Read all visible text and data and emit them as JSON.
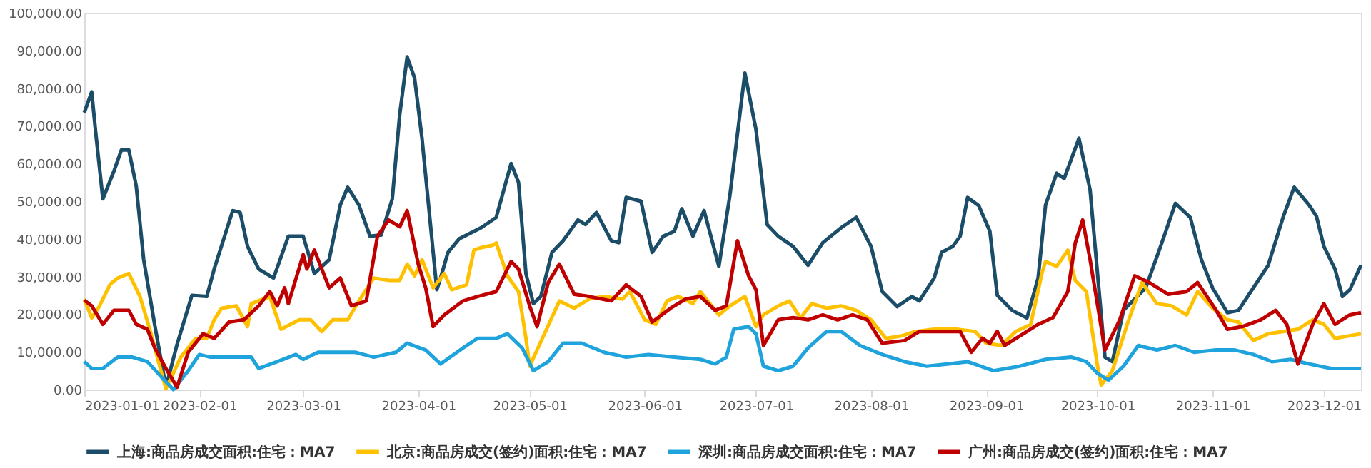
{
  "chart_data": {
    "type": "line",
    "xlim": [
      "2023-01-01",
      "2023-12-11"
    ],
    "xticks": [
      "2023-01-01",
      "2023-02-01",
      "2023-03-01",
      "2023-04-01",
      "2023-05-01",
      "2023-06-01",
      "2023-07-01",
      "2023-08-01",
      "2023-09-01",
      "2023-10-01",
      "2023-11-01",
      "2023-12-01"
    ],
    "ylim": [
      0,
      100000
    ],
    "yticks": [
      {
        "value": 0,
        "label": "0.00"
      },
      {
        "value": 10000,
        "label": "10,000.00"
      },
      {
        "value": 20000,
        "label": "20,000.00"
      },
      {
        "value": 30000,
        "label": "30,000.00"
      },
      {
        "value": 40000,
        "label": "40,000.00"
      },
      {
        "value": 50000,
        "label": "50,000.00"
      },
      {
        "value": 60000,
        "label": "60,000.00"
      },
      {
        "value": 70000,
        "label": "70,000.00"
      },
      {
        "value": 80000,
        "label": "80,000.00"
      },
      {
        "value": 90000,
        "label": "90,000.00"
      },
      {
        "value": 100000,
        "label": "100,000.00"
      }
    ],
    "grid": false,
    "legend": "bottom",
    "marker": "none",
    "line_style": "solid",
    "series": [
      {
        "name": "上海:商品房成交面积:住宅：MA7",
        "color": "#1b4d68",
        "x": [
          "2023-01-01",
          "2023-01-03",
          "2023-01-04",
          "2023-01-06",
          "2023-01-09",
          "2023-01-11",
          "2023-01-13",
          "2023-01-15",
          "2023-01-17",
          "2023-01-20",
          "2023-01-23",
          "2023-01-26",
          "2023-01-30",
          "2023-02-03",
          "2023-02-05",
          "2023-02-10",
          "2023-02-12",
          "2023-02-14",
          "2023-02-17",
          "2023-02-21",
          "2023-02-25",
          "2023-03-01",
          "2023-03-04",
          "2023-03-08",
          "2023-03-11",
          "2023-03-13",
          "2023-03-16",
          "2023-03-19",
          "2023-03-22",
          "2023-03-25",
          "2023-03-27",
          "2023-03-29",
          "2023-03-31",
          "2023-04-02",
          "2023-04-06",
          "2023-04-07",
          "2023-04-09",
          "2023-04-12",
          "2023-04-18",
          "2023-04-22",
          "2023-04-26",
          "2023-04-28",
          "2023-04-30",
          "2023-05-02",
          "2023-05-04",
          "2023-05-07",
          "2023-05-10",
          "2023-05-14",
          "2023-05-16",
          "2023-05-19",
          "2023-05-23",
          "2023-05-25",
          "2023-05-27",
          "2023-05-31",
          "2023-06-03",
          "2023-06-06",
          "2023-06-09",
          "2023-06-11",
          "2023-06-14",
          "2023-06-17",
          "2023-06-21",
          "2023-06-24",
          "2023-06-28",
          "2023-07-01",
          "2023-07-04",
          "2023-07-07",
          "2023-07-11",
          "2023-07-15",
          "2023-07-19",
          "2023-07-24",
          "2023-07-28",
          "2023-08-01",
          "2023-08-04",
          "2023-08-08",
          "2023-08-12",
          "2023-08-14",
          "2023-08-18",
          "2023-08-20",
          "2023-08-23",
          "2023-08-25",
          "2023-08-27",
          "2023-08-30",
          "2023-09-02",
          "2023-09-04",
          "2023-09-08",
          "2023-09-12",
          "2023-09-15",
          "2023-09-17",
          "2023-09-20",
          "2023-09-22",
          "2023-09-26",
          "2023-09-29",
          "2023-10-03",
          "2023-10-05",
          "2023-10-08",
          "2023-10-14",
          "2023-10-18",
          "2023-10-22",
          "2023-10-26",
          "2023-10-29",
          "2023-11-01",
          "2023-11-05",
          "2023-11-08",
          "2023-11-12",
          "2023-11-16",
          "2023-11-20",
          "2023-11-23",
          "2023-11-27",
          "2023-11-29",
          "2023-12-01",
          "2023-12-04",
          "2023-12-06",
          "2023-12-08",
          "2023-12-11"
        ],
        "values": [
          73500,
          79000,
          69000,
          50600,
          58000,
          63600,
          63600,
          54000,
          34500,
          17000,
          600,
          12000,
          25000,
          24700,
          32000,
          47500,
          47000,
          38000,
          32000,
          29600,
          40700,
          40700,
          30800,
          34500,
          49000,
          53700,
          49000,
          40700,
          41000,
          50600,
          73000,
          88300,
          82700,
          66700,
          26500,
          29600,
          36400,
          40000,
          43000,
          45700,
          60000,
          55000,
          30800,
          22800,
          24700,
          36400,
          39500,
          45000,
          43800,
          47000,
          39500,
          39000,
          51000,
          50000,
          36400,
          40700,
          42000,
          48000,
          40700,
          47500,
          32700,
          51800,
          84000,
          69000,
          43800,
          40700,
          38000,
          33000,
          39000,
          43000,
          45700,
          38000,
          26000,
          22000,
          24700,
          23500,
          29600,
          36400,
          38000,
          40700,
          51000,
          48800,
          42000,
          25000,
          21000,
          19000,
          29600,
          49000,
          57400,
          56000,
          66700,
          53000,
          8600,
          7400,
          21000,
          27000,
          38000,
          49400,
          45700,
          34500,
          27000,
          20400,
          21000,
          27000,
          33000,
          45700,
          53700,
          49000,
          46000,
          38000,
          32000,
          24700,
          26500,
          33000
        ]
      },
      {
        "name": "北京:商品房成交(签约)面积:住宅：MA7",
        "color": "#ffc000",
        "x": [
          "2023-01-01",
          "2023-01-03",
          "2023-01-05",
          "2023-01-08",
          "2023-01-10",
          "2023-01-13",
          "2023-01-16",
          "2023-01-19",
          "2023-01-22",
          "2023-01-23",
          "2023-01-27",
          "2023-01-31",
          "2023-02-03",
          "2023-02-05",
          "2023-02-07",
          "2023-02-11",
          "2023-02-14",
          "2023-02-15",
          "2023-02-20",
          "2023-02-23",
          "2023-02-28",
          "2023-03-03",
          "2023-03-06",
          "2023-03-09",
          "2023-03-13",
          "2023-03-16",
          "2023-03-20",
          "2023-03-24",
          "2023-03-27",
          "2023-03-29",
          "2023-03-31",
          "2023-04-02",
          "2023-04-05",
          "2023-04-08",
          "2023-04-10",
          "2023-04-14",
          "2023-04-16",
          "2023-04-18",
          "2023-04-21",
          "2023-04-22",
          "2023-04-25",
          "2023-04-28",
          "2023-04-30",
          "2023-05-01",
          "2023-05-05",
          "2023-05-09",
          "2023-05-13",
          "2023-05-17",
          "2023-05-21",
          "2023-05-26",
          "2023-05-28",
          "2023-06-01",
          "2023-06-04",
          "2023-06-07",
          "2023-06-10",
          "2023-06-14",
          "2023-06-16",
          "2023-06-21",
          "2023-06-24",
          "2023-06-28",
          "2023-07-01",
          "2023-07-03",
          "2023-07-07",
          "2023-07-10",
          "2023-07-13",
          "2023-07-16",
          "2023-07-20",
          "2023-07-24",
          "2023-07-28",
          "2023-08-01",
          "2023-08-05",
          "2023-08-09",
          "2023-08-13",
          "2023-08-18",
          "2023-08-24",
          "2023-08-29",
          "2023-09-01",
          "2023-09-05",
          "2023-09-09",
          "2023-09-13",
          "2023-09-16",
          "2023-09-17",
          "2023-09-20",
          "2023-09-23",
          "2023-09-25",
          "2023-09-28",
          "2023-10-01",
          "2023-10-02",
          "2023-10-05",
          "2023-10-09",
          "2023-10-13",
          "2023-10-17",
          "2023-10-21",
          "2023-10-25",
          "2023-10-28",
          "2023-11-01",
          "2023-11-05",
          "2023-11-08",
          "2023-11-12",
          "2023-11-16",
          "2023-11-20",
          "2023-11-24",
          "2023-11-28",
          "2023-12-01",
          "2023-12-04",
          "2023-12-11"
        ],
        "values": [
          24000,
          19000,
          22000,
          28000,
          29600,
          30800,
          24700,
          14800,
          3700,
          200,
          8600,
          13600,
          13600,
          18500,
          21600,
          22200,
          16700,
          22800,
          24700,
          16000,
          18500,
          18500,
          15400,
          18500,
          18500,
          23500,
          29600,
          29000,
          29000,
          33300,
          30200,
          34500,
          27000,
          30800,
          26500,
          27800,
          37000,
          37700,
          38300,
          38900,
          30200,
          26000,
          13600,
          6200,
          14800,
          23500,
          21600,
          24000,
          24700,
          24000,
          26000,
          18500,
          17300,
          23500,
          24700,
          22800,
          26000,
          19800,
          22200,
          24700,
          16700,
          19800,
          22200,
          23500,
          19000,
          22800,
          21600,
          22200,
          21000,
          18500,
          13600,
          14200,
          15400,
          16000,
          16000,
          15400,
          12300,
          11700,
          15400,
          17300,
          30800,
          34000,
          32700,
          37000,
          29000,
          26000,
          6200,
          1200,
          5000,
          17300,
          28400,
          22800,
          22200,
          19800,
          26000,
          21600,
          18500,
          17900,
          13000,
          14800,
          15400,
          16000,
          18500,
          17300,
          13600,
          14800
        ]
      },
      {
        "name": "深圳:商品房成交面积:住宅：MA7",
        "color": "#1fa3dc",
        "x": [
          "2023-01-01",
          "2023-01-03",
          "2023-01-06",
          "2023-01-10",
          "2023-01-14",
          "2023-01-18",
          "2023-01-22",
          "2023-01-25",
          "2023-01-29",
          "2023-02-01",
          "2023-02-04",
          "2023-02-06",
          "2023-02-15",
          "2023-02-17",
          "2023-02-22",
          "2023-02-27",
          "2023-03-01",
          "2023-03-05",
          "2023-03-15",
          "2023-03-20",
          "2023-03-26",
          "2023-03-29",
          "2023-04-03",
          "2023-04-07",
          "2023-04-13",
          "2023-04-17",
          "2023-04-22",
          "2023-04-25",
          "2023-04-29",
          "2023-05-02",
          "2023-05-06",
          "2023-05-10",
          "2023-05-15",
          "2023-05-21",
          "2023-05-27",
          "2023-06-02",
          "2023-06-09",
          "2023-06-16",
          "2023-06-20",
          "2023-06-23",
          "2023-06-25",
          "2023-06-29",
          "2023-07-01",
          "2023-07-03",
          "2023-07-07",
          "2023-07-11",
          "2023-07-15",
          "2023-07-20",
          "2023-07-24",
          "2023-07-29",
          "2023-08-04",
          "2023-08-10",
          "2023-08-16",
          "2023-08-22",
          "2023-08-27",
          "2023-09-03",
          "2023-09-10",
          "2023-09-17",
          "2023-09-24",
          "2023-09-28",
          "2023-10-01",
          "2023-10-04",
          "2023-10-08",
          "2023-10-12",
          "2023-10-17",
          "2023-10-22",
          "2023-10-27",
          "2023-11-02",
          "2023-11-07",
          "2023-11-12",
          "2023-11-17",
          "2023-11-22",
          "2023-11-27",
          "2023-12-03",
          "2023-12-11"
        ],
        "values": [
          7400,
          5600,
          5600,
          8600,
          8600,
          7400,
          3100,
          0,
          5000,
          9300,
          8600,
          8600,
          8600,
          5600,
          7400,
          9300,
          8000,
          9900,
          9900,
          8600,
          9900,
          12300,
          10500,
          6800,
          11000,
          13600,
          13600,
          14800,
          11000,
          5000,
          7400,
          12300,
          12300,
          9900,
          8600,
          9300,
          8600,
          8000,
          6800,
          8600,
          16000,
          16700,
          14800,
          6200,
          5000,
          6200,
          11000,
          15400,
          15400,
          11700,
          9300,
          7400,
          6200,
          6800,
          7400,
          5000,
          6200,
          8000,
          8600,
          7400,
          4300,
          2500,
          6200,
          11700,
          10500,
          11700,
          9900,
          10500,
          10500,
          9300,
          7400,
          8000,
          6800,
          5600,
          5600
        ]
      },
      {
        "name": "广州:商品房成交(签约)面积:住宅：MA7",
        "color": "#c00000",
        "x": [
          "2023-01-01",
          "2023-01-03",
          "2023-01-06",
          "2023-01-09",
          "2023-01-13",
          "2023-01-15",
          "2023-01-18",
          "2023-01-20",
          "2023-01-23",
          "2023-01-26",
          "2023-01-29",
          "2023-02-02",
          "2023-02-05",
          "2023-02-09",
          "2023-02-13",
          "2023-02-17",
          "2023-02-20",
          "2023-02-22",
          "2023-02-24",
          "2023-02-25",
          "2023-03-01",
          "2023-03-02",
          "2023-03-04",
          "2023-03-08",
          "2023-03-11",
          "2023-03-14",
          "2023-03-18",
          "2023-03-21",
          "2023-03-24",
          "2023-03-27",
          "2023-03-29",
          "2023-04-01",
          "2023-04-03",
          "2023-04-05",
          "2023-04-08",
          "2023-04-13",
          "2023-04-17",
          "2023-04-22",
          "2023-04-26",
          "2023-04-28",
          "2023-05-01",
          "2023-05-03",
          "2023-05-06",
          "2023-05-09",
          "2023-05-13",
          "2023-05-17",
          "2023-05-23",
          "2023-05-27",
          "2023-05-31",
          "2023-06-03",
          "2023-06-08",
          "2023-06-12",
          "2023-06-16",
          "2023-06-20",
          "2023-06-23",
          "2023-06-26",
          "2023-06-29",
          "2023-07-01",
          "2023-07-03",
          "2023-07-07",
          "2023-07-11",
          "2023-07-15",
          "2023-07-19",
          "2023-07-23",
          "2023-07-27",
          "2023-07-31",
          "2023-08-04",
          "2023-08-10",
          "2023-08-14",
          "2023-08-18",
          "2023-08-25",
          "2023-08-28",
          "2023-08-31",
          "2023-09-02",
          "2023-09-04",
          "2023-09-06",
          "2023-09-11",
          "2023-09-15",
          "2023-09-19",
          "2023-09-23",
          "2023-09-25",
          "2023-09-27",
          "2023-09-29",
          "2023-10-03",
          "2023-10-07",
          "2023-10-11",
          "2023-10-15",
          "2023-10-20",
          "2023-10-25",
          "2023-10-28",
          "2023-11-02",
          "2023-11-05",
          "2023-11-09",
          "2023-11-14",
          "2023-11-18",
          "2023-11-21",
          "2023-11-24",
          "2023-11-28",
          "2023-12-01",
          "2023-12-04",
          "2023-12-08",
          "2023-12-11"
        ],
        "values": [
          23700,
          22200,
          17300,
          21000,
          21000,
          17300,
          16000,
          11000,
          5600,
          600,
          9900,
          14800,
          13600,
          17900,
          18500,
          22200,
          26000,
          22200,
          27000,
          22800,
          35800,
          32000,
          37000,
          27000,
          29600,
          22200,
          23500,
          40700,
          45000,
          43200,
          47500,
          33300,
          27000,
          16700,
          19800,
          23500,
          24700,
          26000,
          34000,
          32000,
          22200,
          16700,
          28400,
          33300,
          25300,
          24700,
          23500,
          27800,
          24700,
          17900,
          21600,
          24000,
          24700,
          21000,
          22200,
          39500,
          30200,
          26500,
          11700,
          18500,
          19100,
          18500,
          19800,
          18500,
          19800,
          18500,
          12300,
          13000,
          15400,
          15400,
          15400,
          9900,
          13600,
          12300,
          15400,
          11700,
          14800,
          17300,
          19100,
          26000,
          38900,
          45000,
          34500,
          10500,
          18500,
          30200,
          28400,
          25300,
          26000,
          28400,
          21000,
          16000,
          16700,
          18500,
          21000,
          17300,
          6800,
          17300,
          22800,
          17300,
          19800,
          20400
        ]
      }
    ]
  }
}
